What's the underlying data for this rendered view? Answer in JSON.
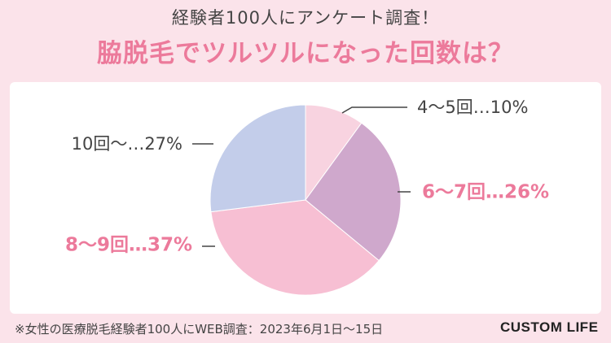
{
  "header": {
    "subtitle": "経験者100人にアンケート調査！",
    "title": "脇脱毛でツルツルになった回数は？",
    "title_color": "#ec7a9b"
  },
  "chart_data": {
    "type": "pie",
    "start": "top",
    "direction": "clockwise",
    "slices": [
      {
        "label": "4〜5回…10%",
        "value": 10,
        "color": "#f8d3e0",
        "label_color": "#444444"
      },
      {
        "label": "6〜7回…26%",
        "value": 26,
        "color": "#cfa8cc",
        "label_color": "#ec7a9b"
      },
      {
        "label": "8〜9回…37%",
        "value": 37,
        "color": "#f7bfd3",
        "label_color": "#ec7a9b"
      },
      {
        "label": "10回〜…27%",
        "value": 27,
        "color": "#c3cdea",
        "label_color": "#444444"
      }
    ]
  },
  "footer": {
    "note": "※女性の医療脱毛経験者100人にWEB調査：2023年6月1日〜15日",
    "brand": "CUSTOM LIFE"
  }
}
